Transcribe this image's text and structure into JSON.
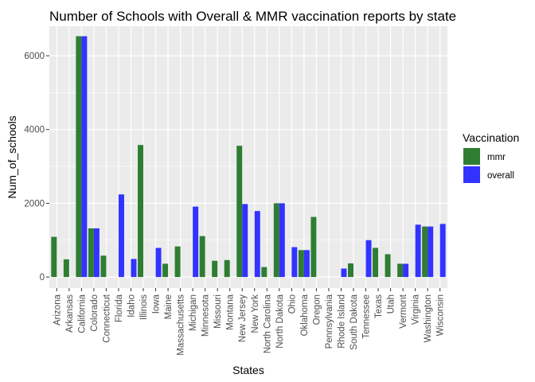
{
  "chart_data": {
    "type": "bar",
    "title": "Number of Schools with Overall & MMR vaccination reports by state",
    "xlabel": "States",
    "ylabel": "Num_of_schools",
    "ylim": [
      -300,
      6800
    ],
    "yticks": [
      0,
      2000,
      4000,
      6000
    ],
    "grid": true,
    "legend": {
      "title": "Vaccination",
      "placement": "right"
    },
    "categories": [
      "Arizona",
      "Arkansas",
      "California",
      "Colorado",
      "Connecticut",
      "Florida",
      "Idaho",
      "Illinois",
      "Iowa",
      "Maine",
      "Massachusetts",
      "Michigan",
      "Minnesota",
      "Missouri",
      "Montana",
      "New Jersey",
      "New York",
      "North Carolina",
      "North Dakota",
      "Ohio",
      "Oklahoma",
      "Oregon",
      "Pennsylvania",
      "Rhode Island",
      "South Dakota",
      "Tennessee",
      "Texas",
      "Utah",
      "Vermont",
      "Virginia",
      "Washington",
      "Wisconsin"
    ],
    "series": [
      {
        "name": "mmr",
        "color": "#2e7d32",
        "values": [
          1090,
          480,
          6530,
          1320,
          580,
          null,
          null,
          3580,
          null,
          360,
          830,
          null,
          1110,
          440,
          460,
          3560,
          null,
          270,
          2000,
          null,
          730,
          1630,
          null,
          null,
          370,
          null,
          790,
          620,
          360,
          null,
          1370,
          null
        ]
      },
      {
        "name": "overall",
        "color": "#3333ff",
        "values": [
          null,
          null,
          6530,
          1320,
          null,
          2240,
          490,
          null,
          790,
          null,
          null,
          1910,
          null,
          null,
          null,
          1980,
          1790,
          null,
          2000,
          810,
          730,
          null,
          null,
          230,
          null,
          1000,
          null,
          null,
          360,
          1420,
          1370,
          1440
        ]
      }
    ]
  }
}
